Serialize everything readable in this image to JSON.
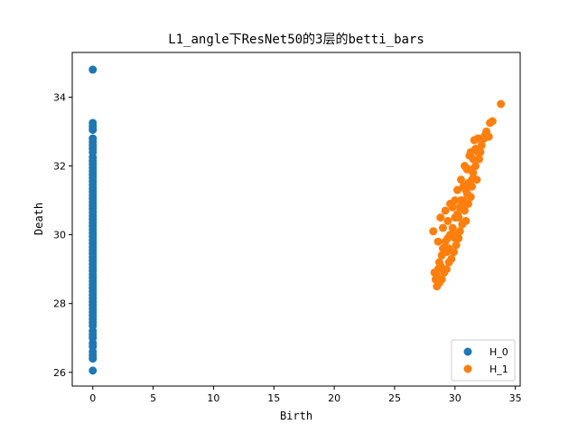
{
  "chart_data": {
    "type": "scatter",
    "title": "L1_angle下ResNet50的3层的betti_bars",
    "xlabel": "Birth",
    "ylabel": "Death",
    "xlim": [
      -1.7,
      35.4
    ],
    "ylim": [
      25.6,
      35.3
    ],
    "xticks": [
      0,
      5,
      10,
      15,
      20,
      25,
      30,
      35
    ],
    "yticks": [
      26,
      28,
      30,
      32,
      34
    ],
    "legend_position": "lower-right",
    "series": [
      {
        "name": "H_0",
        "color": "#1f77b4",
        "points": [
          [
            0,
            34.8
          ],
          [
            0,
            33.25
          ],
          [
            0,
            33.15
          ],
          [
            0,
            33.05
          ],
          [
            0,
            32.8
          ],
          [
            0,
            32.7
          ],
          [
            0,
            32.6
          ],
          [
            0,
            32.5
          ],
          [
            0,
            32.4
          ],
          [
            0,
            32.25
          ],
          [
            0,
            32.15
          ],
          [
            0,
            32.05
          ],
          [
            0,
            31.95
          ],
          [
            0,
            31.85
          ],
          [
            0,
            31.75
          ],
          [
            0,
            31.65
          ],
          [
            0,
            31.55
          ],
          [
            0,
            31.45
          ],
          [
            0,
            31.35
          ],
          [
            0,
            31.25
          ],
          [
            0,
            31.15
          ],
          [
            0,
            31.05
          ],
          [
            0,
            30.95
          ],
          [
            0,
            30.85
          ],
          [
            0,
            30.75
          ],
          [
            0,
            30.65
          ],
          [
            0,
            30.55
          ],
          [
            0,
            30.45
          ],
          [
            0,
            30.35
          ],
          [
            0,
            30.25
          ],
          [
            0,
            30.15
          ],
          [
            0,
            30.05
          ],
          [
            0,
            29.95
          ],
          [
            0,
            29.85
          ],
          [
            0,
            29.75
          ],
          [
            0,
            29.65
          ],
          [
            0,
            29.55
          ],
          [
            0,
            29.45
          ],
          [
            0,
            29.35
          ],
          [
            0,
            29.25
          ],
          [
            0,
            29.15
          ],
          [
            0,
            29.05
          ],
          [
            0,
            28.95
          ],
          [
            0,
            28.85
          ],
          [
            0,
            28.75
          ],
          [
            0,
            28.65
          ],
          [
            0,
            28.55
          ],
          [
            0,
            28.45
          ],
          [
            0,
            28.35
          ],
          [
            0,
            28.25
          ],
          [
            0,
            28.15
          ],
          [
            0,
            28.05
          ],
          [
            0,
            27.95
          ],
          [
            0,
            27.85
          ],
          [
            0,
            27.75
          ],
          [
            0,
            27.65
          ],
          [
            0,
            27.55
          ],
          [
            0,
            27.45
          ],
          [
            0,
            27.35
          ],
          [
            0,
            27.2
          ],
          [
            0,
            27.1
          ],
          [
            0,
            27.0
          ],
          [
            0,
            26.85
          ],
          [
            0,
            26.75
          ],
          [
            0,
            26.6
          ],
          [
            0,
            26.5
          ],
          [
            0,
            26.4
          ],
          [
            0,
            26.05
          ]
        ]
      },
      {
        "name": "H_1",
        "color": "#ff7f0e",
        "points": [
          [
            33.8,
            33.8
          ],
          [
            33.1,
            33.3
          ],
          [
            32.9,
            33.25
          ],
          [
            32.6,
            33.0
          ],
          [
            32.8,
            32.85
          ],
          [
            32.4,
            32.8
          ],
          [
            32.2,
            32.6
          ],
          [
            31.6,
            32.75
          ],
          [
            31.9,
            32.4
          ],
          [
            32.0,
            32.2
          ],
          [
            31.3,
            32.4
          ],
          [
            31.7,
            32.0
          ],
          [
            31.5,
            31.8
          ],
          [
            31.8,
            31.6
          ],
          [
            31.2,
            31.9
          ],
          [
            31.0,
            31.9
          ],
          [
            31.4,
            31.4
          ],
          [
            31.1,
            31.5
          ],
          [
            30.9,
            31.3
          ],
          [
            31.3,
            31.1
          ],
          [
            30.7,
            31.0
          ],
          [
            31.1,
            30.9
          ],
          [
            30.5,
            31.0
          ],
          [
            30.8,
            30.7
          ],
          [
            30.4,
            30.8
          ],
          [
            30.9,
            30.4
          ],
          [
            30.2,
            30.6
          ],
          [
            30.6,
            30.3
          ],
          [
            30.0,
            30.5
          ],
          [
            30.4,
            30.1
          ],
          [
            29.8,
            30.2
          ],
          [
            30.3,
            29.9
          ],
          [
            29.6,
            30.0
          ],
          [
            30.1,
            29.7
          ],
          [
            29.4,
            29.9
          ],
          [
            29.9,
            29.5
          ],
          [
            29.2,
            29.8
          ],
          [
            29.7,
            29.3
          ],
          [
            29.0,
            29.6
          ],
          [
            29.5,
            29.2
          ],
          [
            28.9,
            29.4
          ],
          [
            29.3,
            29.0
          ],
          [
            28.7,
            29.2
          ],
          [
            29.1,
            28.9
          ],
          [
            28.6,
            29.0
          ],
          [
            28.9,
            28.7
          ],
          [
            28.5,
            28.8
          ],
          [
            28.7,
            28.6
          ],
          [
            28.4,
            28.7
          ],
          [
            28.5,
            28.5
          ],
          [
            28.3,
            28.9
          ],
          [
            28.2,
            30.1
          ],
          [
            28.8,
            30.5
          ],
          [
            29.2,
            30.7
          ],
          [
            29.6,
            30.9
          ],
          [
            28.6,
            29.8
          ],
          [
            29.0,
            30.2
          ],
          [
            29.4,
            30.4
          ],
          [
            30.8,
            32.0
          ],
          [
            31.2,
            32.3
          ],
          [
            30.5,
            31.6
          ],
          [
            30.2,
            31.3
          ],
          [
            29.8,
            30.8
          ],
          [
            30.0,
            31.0
          ],
          [
            31.5,
            32.2
          ],
          [
            31.0,
            31.2
          ],
          [
            30.6,
            30.8
          ],
          [
            29.5,
            29.6
          ],
          [
            29.9,
            30.0
          ],
          [
            30.3,
            30.5
          ],
          [
            28.8,
            29.1
          ],
          [
            31.7,
            32.5
          ],
          [
            32.5,
            32.9
          ],
          [
            32.1,
            32.4
          ],
          [
            31.4,
            31.6
          ],
          [
            30.0,
            29.9
          ],
          [
            29.3,
            29.5
          ],
          [
            30.7,
            31.4
          ],
          [
            31.9,
            32.8
          ],
          [
            32.3,
            32.8
          ]
        ]
      }
    ]
  }
}
